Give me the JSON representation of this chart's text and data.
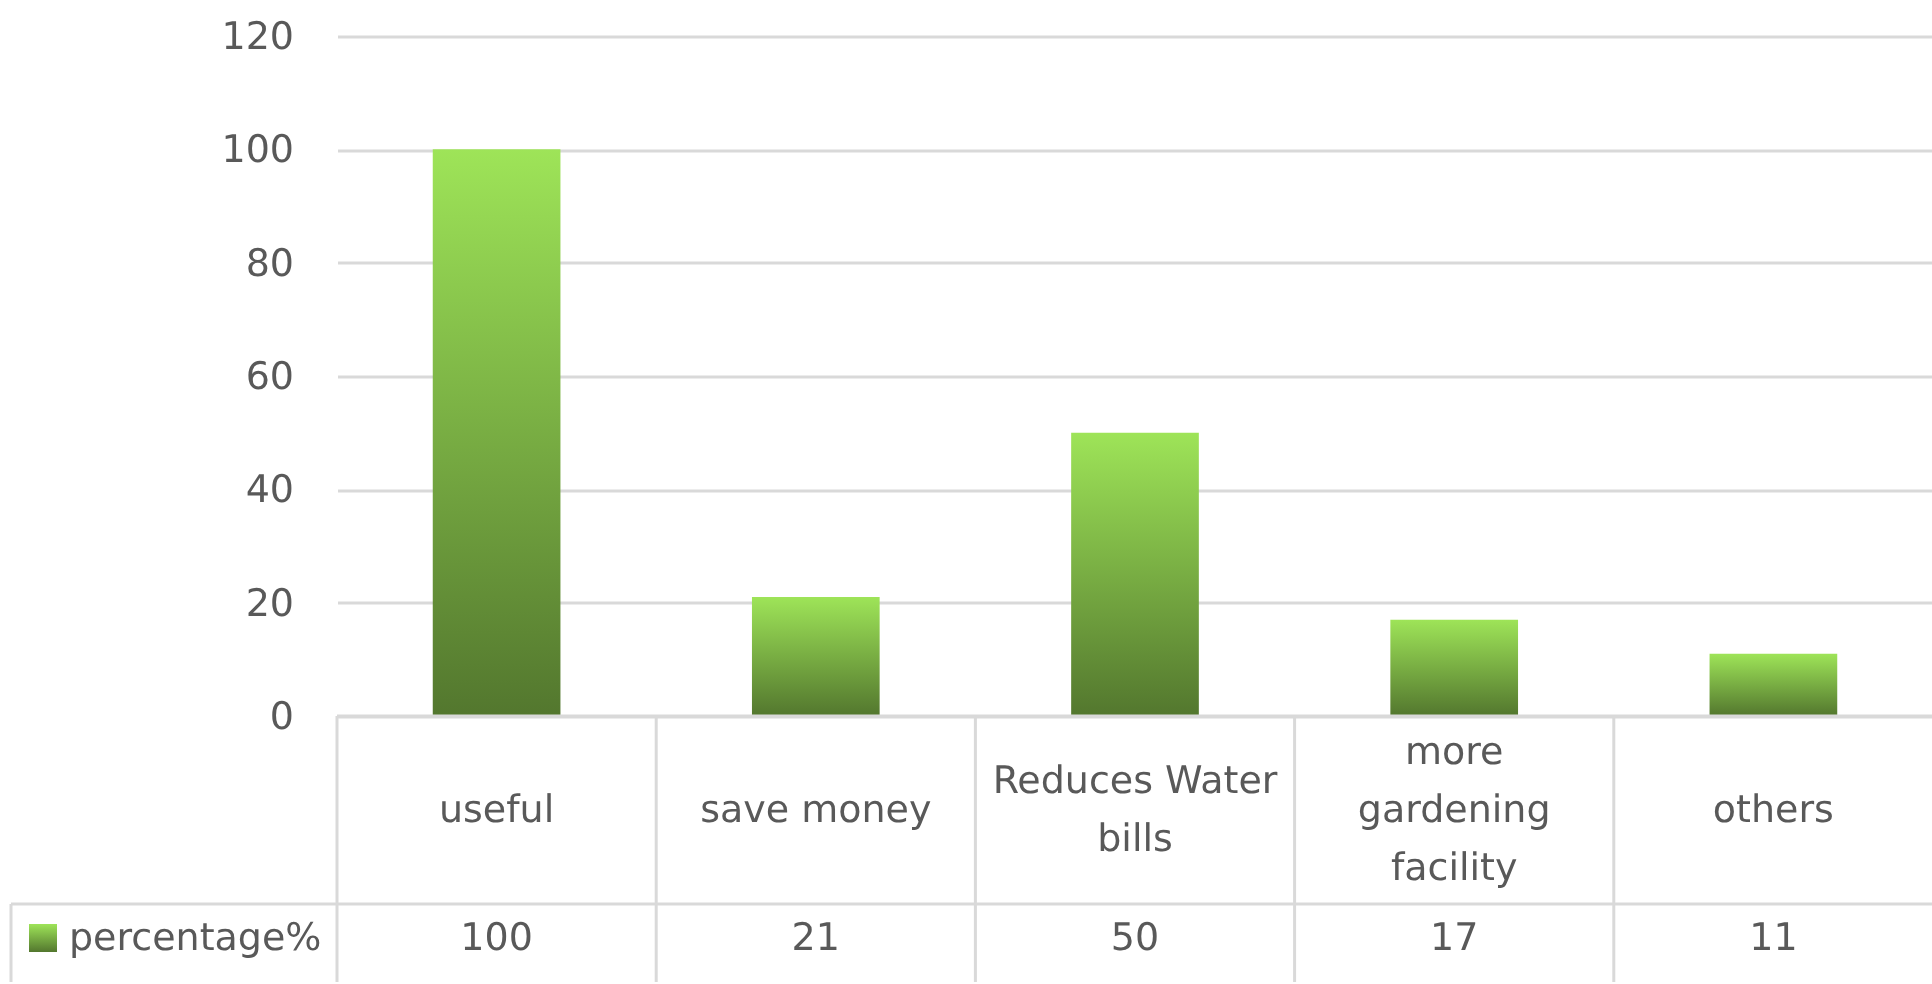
{
  "chart_data": {
    "type": "bar",
    "categories": [
      "useful",
      "save money",
      "Reduces Water bills",
      "more gardening facility",
      "others"
    ],
    "series": [
      {
        "name": "percentage%",
        "color": "#78ad43",
        "values": [
          100,
          21,
          50,
          17,
          11
        ]
      }
    ],
    "ylim": [
      0,
      120
    ],
    "yticks": [
      0,
      20,
      40,
      60,
      80,
      100,
      120
    ],
    "grid": "y",
    "legend": "bottom left",
    "data_labels": true
  }
}
